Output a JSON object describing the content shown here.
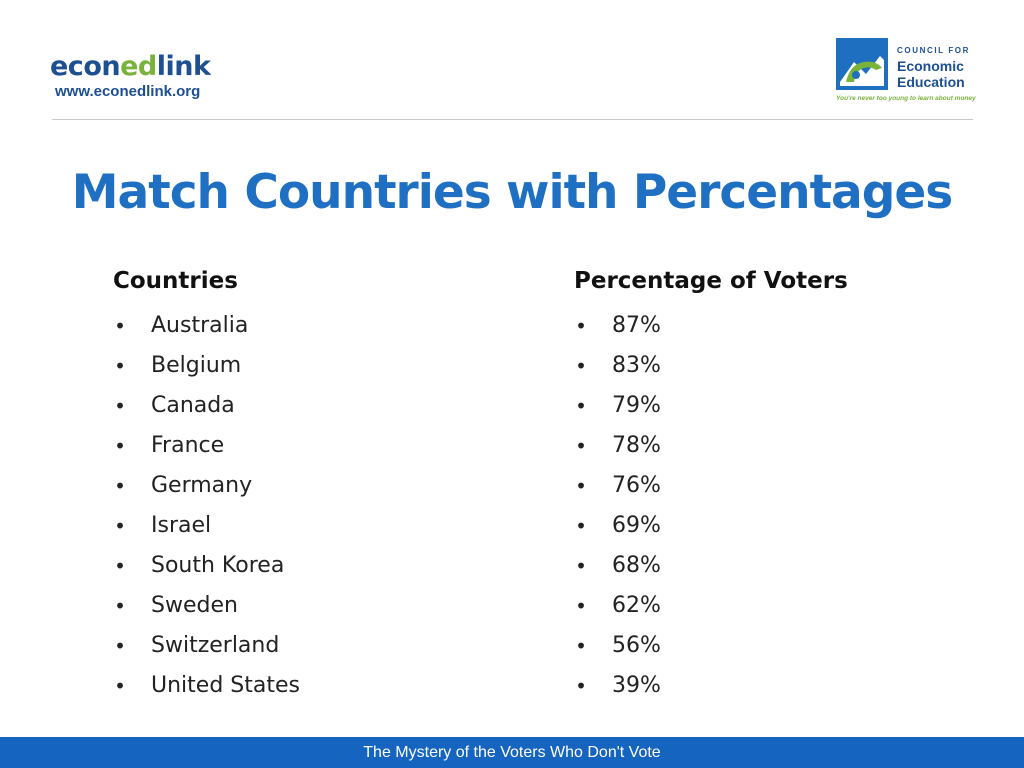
{
  "header": {
    "left_logo": {
      "text_part1": "econ",
      "text_part2": "ed",
      "text_part3": "link",
      "url": "www.econedlink.org"
    },
    "right_logo": {
      "line1": "COUNCIL FOR",
      "line2": "Economic",
      "line3": "Education",
      "tagline": "You're never too young to learn about money"
    }
  },
  "title": "Match Countries with Percentages",
  "countries": {
    "header": "Countries",
    "items": [
      "Australia",
      "Belgium",
      "Canada",
      "France",
      "Germany",
      "Israel",
      "South Korea",
      "Sweden",
      "Switzerland",
      "United States"
    ]
  },
  "percentages": {
    "header": "Percentage of Voters",
    "items": [
      "87%",
      "83%",
      "79%",
      "78%",
      "76%",
      "69%",
      "68%",
      "62%",
      "56%",
      "39%"
    ]
  },
  "bullet": "•",
  "footer": "The Mystery of the Voters Who Don't Vote",
  "colors": {
    "title": "#1f6fc2",
    "brand_navy": "#1e4f91",
    "brand_green": "#7ab33c",
    "footer_bg": "#1565c0"
  }
}
